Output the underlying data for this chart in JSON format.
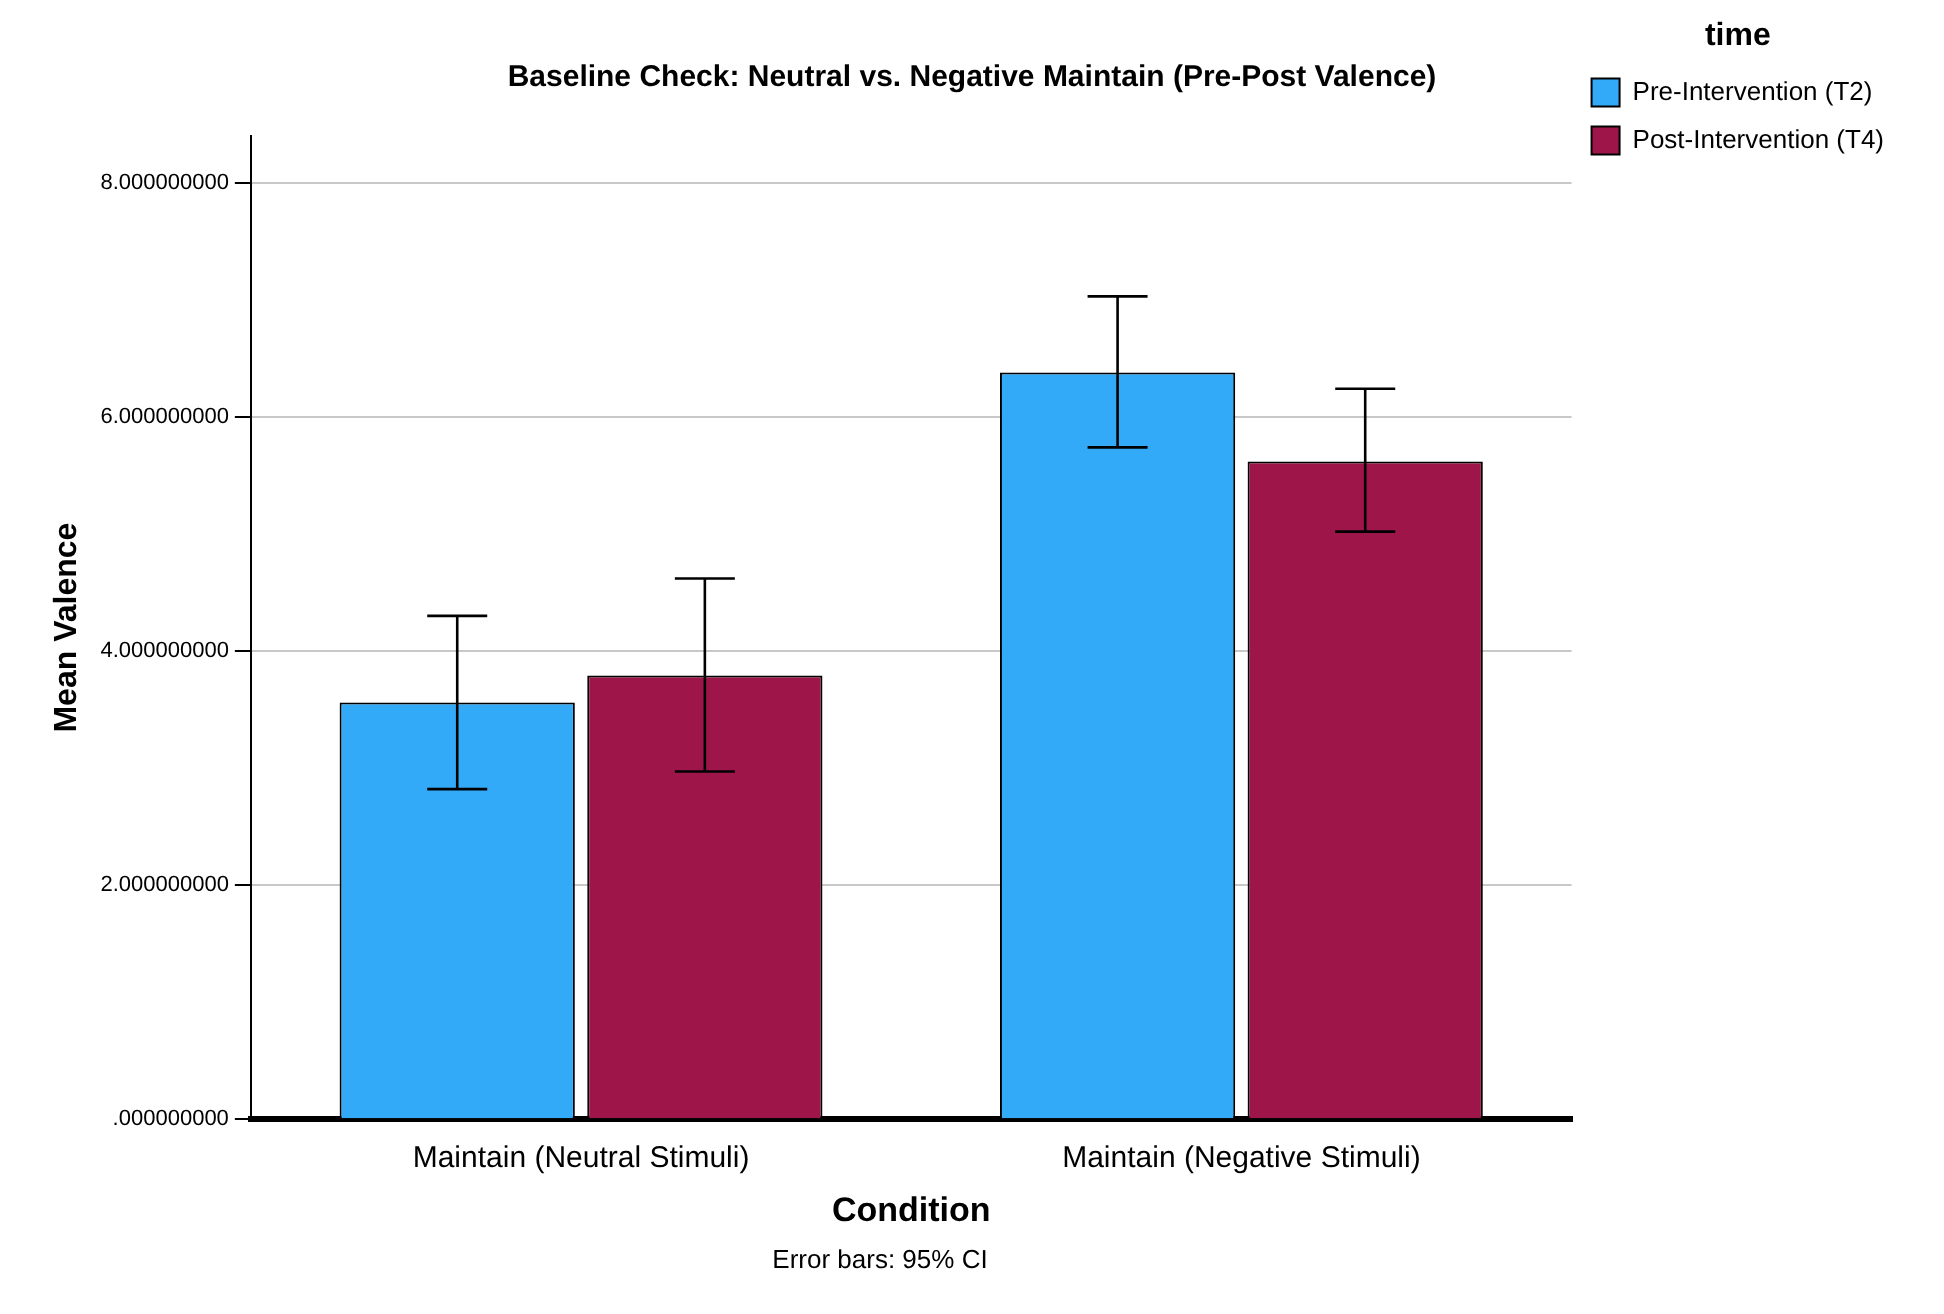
{
  "chart_data": {
    "type": "bar",
    "title": "Baseline Check: Neutral vs. Negative Maintain (Pre-Post Valence)",
    "xlabel": "Condition",
    "ylabel": "Mean Valence",
    "legend_title": "time",
    "categories": [
      "Maintain (Neutral Stimuli)",
      "Maintain (Negative Stimuli)"
    ],
    "series": [
      {
        "name": "Pre-Intervention (T2)",
        "color": "#33aaf8",
        "values": [
          3.56,
          6.38
        ],
        "errors": [
          [
            2.82,
            4.3
          ],
          [
            5.74,
            7.03
          ]
        ]
      },
      {
        "name": "Post-Intervention (T4)",
        "color": "#9e154a",
        "values": [
          3.79,
          5.62
        ],
        "errors": [
          [
            2.97,
            4.62
          ],
          [
            5.02,
            6.24
          ]
        ]
      }
    ],
    "ylim": [
      0,
      8.4
    ],
    "yticks": [
      {
        "value": 0,
        "label": ".000000000"
      },
      {
        "value": 2,
        "label": "2.000000000"
      },
      {
        "value": 4,
        "label": "4.000000000"
      },
      {
        "value": 6,
        "label": "6.000000000"
      },
      {
        "value": 8,
        "label": "8.000000000"
      }
    ],
    "grid": "y",
    "legend": "top right",
    "annotations": [
      "Error bars: 95% CI"
    ]
  }
}
